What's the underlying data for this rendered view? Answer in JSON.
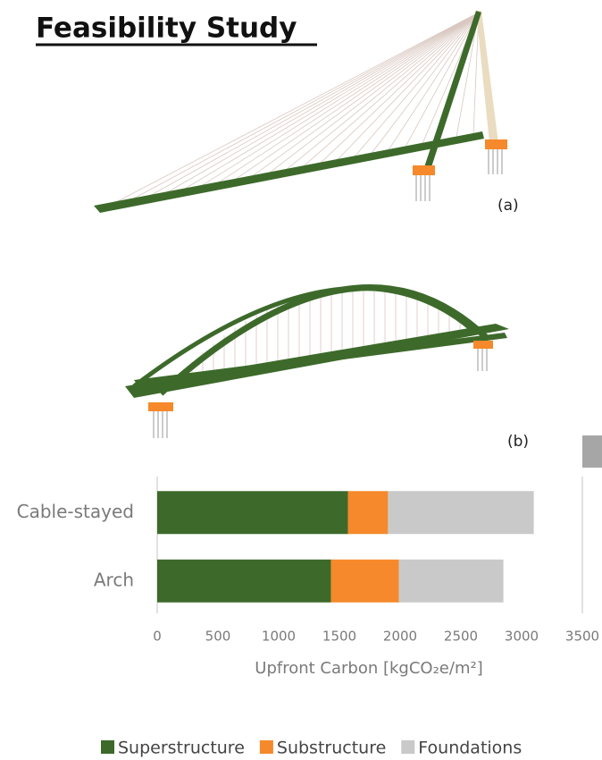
{
  "header": {
    "title": "Feasibility Study"
  },
  "figures": [
    {
      "label": "(a)"
    },
    {
      "label": "(b)"
    }
  ],
  "chart_data": {
    "type": "stacked-barh",
    "xlabel": "Upfront Carbon [kgCO₂e/m²]",
    "categories": [
      "Cable-stayed",
      "Arch"
    ],
    "series": [
      {
        "name": "Superstructure",
        "color": "#3d6a2b",
        "values": [
          1570,
          1430
        ]
      },
      {
        "name": "Substructure",
        "color": "#f5892b",
        "values": [
          330,
          560
        ]
      },
      {
        "name": "Foundations",
        "color": "#c9c9c9",
        "values": [
          1200,
          860
        ]
      }
    ],
    "xlim": [
      0,
      3500
    ],
    "xticks": [
      0,
      500,
      1000,
      1500,
      2000,
      2500,
      3000,
      3500
    ],
    "legend": "bottom"
  }
}
